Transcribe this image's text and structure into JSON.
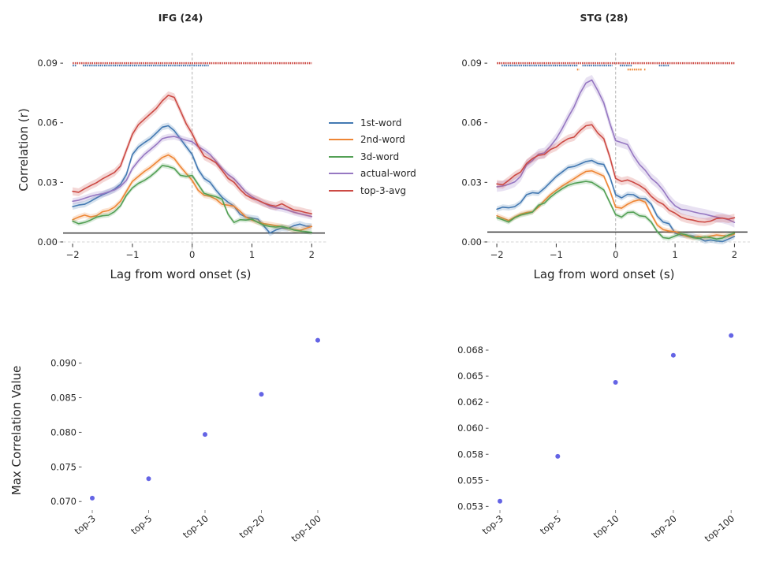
{
  "figure": {
    "legend": {
      "items": [
        {
          "label": "1st-word",
          "color": "#4379b2"
        },
        {
          "label": "2nd-word",
          "color": "#ee8635"
        },
        {
          "label": "3d-word",
          "color": "#53a055"
        },
        {
          "label": "actual-word",
          "color": "#9678c2"
        },
        {
          "label": "top-3-avg",
          "color": "#cc4a44"
        }
      ]
    },
    "accent_colors": {
      "scatter_point": "#4949e0",
      "zero_vline": "#b3b3b3",
      "zero_hline": "#d9d9d9",
      "noise_floor_line": "#3a3a3a",
      "tick": "#333333"
    }
  },
  "chart_data": [
    {
      "id": "ifg_lag",
      "type": "line",
      "title": "IFG (24)",
      "xlabel": "Lag from word onset (s)",
      "ylabel": "Correlation (r)",
      "xlim": [
        -2.16,
        2.22
      ],
      "ylim": [
        -0.0032,
        0.096
      ],
      "xticks": [
        -2,
        -1,
        0,
        1,
        2
      ],
      "xtick_labels": [
        "−2",
        "−1",
        "0",
        "1",
        "2"
      ],
      "yticks": [
        0.0,
        0.03,
        0.06,
        0.09
      ],
      "ytick_labels": [
        "0.00",
        "0.03",
        "0.06",
        "0.09"
      ],
      "vline_x": 0,
      "zero_hline_y": 0,
      "noise_floor_y": 0.0045,
      "x_start": -2.0,
      "x_step": 0.1,
      "series": [
        {
          "name": "1st-word",
          "color": "#4379b2",
          "band": 0.0016,
          "values": [
            0.0178,
            0.0186,
            0.019,
            0.0205,
            0.0222,
            0.0238,
            0.025,
            0.0266,
            0.029,
            0.034,
            0.044,
            0.0478,
            0.05,
            0.052,
            0.0548,
            0.0578,
            0.0585,
            0.056,
            0.052,
            0.048,
            0.044,
            0.0365,
            0.032,
            0.03,
            0.026,
            0.0225,
            0.02,
            0.018,
            0.014,
            0.0125,
            0.012,
            0.0115,
            0.008,
            0.0045,
            0.006,
            0.007,
            0.0068,
            0.0082,
            0.009,
            0.008,
            0.0078
          ]
        },
        {
          "name": "2nd-word",
          "color": "#ee8635",
          "band": 0.0014,
          "values": [
            0.0112,
            0.0125,
            0.0135,
            0.0126,
            0.0132,
            0.0152,
            0.0158,
            0.0175,
            0.0205,
            0.0255,
            0.0305,
            0.033,
            0.0355,
            0.0375,
            0.04,
            0.0425,
            0.0438,
            0.042,
            0.038,
            0.0345,
            0.031,
            0.026,
            0.0235,
            0.023,
            0.0215,
            0.019,
            0.0185,
            0.018,
            0.0155,
            0.0125,
            0.011,
            0.01,
            0.0092,
            0.0088,
            0.0082,
            0.0078,
            0.007,
            0.0062,
            0.0058,
            0.0068,
            0.0078
          ]
        },
        {
          "name": "3d-word",
          "color": "#53a055",
          "band": 0.0012,
          "values": [
            0.0105,
            0.0092,
            0.0098,
            0.011,
            0.0125,
            0.0132,
            0.0135,
            0.0152,
            0.0182,
            0.0235,
            0.0272,
            0.0295,
            0.031,
            0.033,
            0.0355,
            0.0385,
            0.038,
            0.037,
            0.0336,
            0.033,
            0.0335,
            0.029,
            0.0245,
            0.0235,
            0.0228,
            0.0215,
            0.014,
            0.0098,
            0.0112,
            0.011,
            0.0115,
            0.0098,
            0.0085,
            0.0078,
            0.0075,
            0.0078,
            0.007,
            0.006,
            0.0055,
            0.0052,
            0.0048
          ]
        },
        {
          "name": "actual-word",
          "color": "#9678c2",
          "band": 0.0016,
          "values": [
            0.0205,
            0.021,
            0.022,
            0.023,
            0.0238,
            0.0242,
            0.0252,
            0.0262,
            0.028,
            0.031,
            0.037,
            0.0408,
            0.044,
            0.0465,
            0.049,
            0.052,
            0.0528,
            0.0531,
            0.0522,
            0.0512,
            0.0505,
            0.048,
            0.0462,
            0.044,
            0.0405,
            0.037,
            0.034,
            0.0318,
            0.0285,
            0.025,
            0.0228,
            0.021,
            0.0195,
            0.018,
            0.0172,
            0.0168,
            0.016,
            0.015,
            0.0142,
            0.0135,
            0.0128
          ]
        },
        {
          "name": "top-3-avg",
          "color": "#cc4a44",
          "band": 0.002,
          "values": [
            0.0255,
            0.025,
            0.0268,
            0.0284,
            0.0298,
            0.0318,
            0.0334,
            0.035,
            0.0382,
            0.0462,
            0.0542,
            0.059,
            0.0618,
            0.0645,
            0.0672,
            0.071,
            0.0738,
            0.0728,
            0.0662,
            0.0595,
            0.0545,
            0.0482,
            0.0432,
            0.0416,
            0.0398,
            0.036,
            0.032,
            0.03,
            0.0264,
            0.0236,
            0.022,
            0.021,
            0.0196,
            0.0186,
            0.018,
            0.0192,
            0.0176,
            0.0161,
            0.0156,
            0.0148,
            0.0142
          ]
        }
      ],
      "significance_markers": [
        {
          "name": "top-3-avg",
          "color": "#cc4a44",
          "y": 0.09,
          "width": 2.6,
          "segments": [
            [
              -2.0,
              2.0
            ]
          ]
        },
        {
          "name": "1st-word",
          "color": "#4379b2",
          "y": 0.0888,
          "width": 2.3,
          "segments": [
            [
              -2.0,
              -1.94
            ],
            [
              -1.83,
              0.28
            ]
          ]
        }
      ]
    },
    {
      "id": "stg_lag",
      "type": "line",
      "title": "STG (28)",
      "xlabel": "Lag from word onset (s)",
      "ylabel": "",
      "xlim": [
        -2.16,
        2.22
      ],
      "ylim": [
        -0.0032,
        0.096
      ],
      "xticks": [
        -2,
        -1,
        0,
        1,
        2
      ],
      "xtick_labels": [
        "−2",
        "−1",
        "0",
        "1",
        "2"
      ],
      "yticks": [
        0.0,
        0.03,
        0.06,
        0.09
      ],
      "ytick_labels": [
        "0.00",
        "0.03",
        "0.06",
        "0.09"
      ],
      "vline_x": 0,
      "zero_hline_y": 0,
      "noise_floor_y": 0.005,
      "x_start": -2.0,
      "x_step": 0.1,
      "series": [
        {
          "name": "1st-word",
          "color": "#4379b2",
          "band": 0.0014,
          "values": [
            0.0165,
            0.0175,
            0.0172,
            0.0178,
            0.0198,
            0.0238,
            0.0248,
            0.0245,
            0.027,
            0.03,
            0.033,
            0.0352,
            0.0375,
            0.038,
            0.0392,
            0.0405,
            0.041,
            0.0395,
            0.039,
            0.033,
            0.0238,
            0.0222,
            0.024,
            0.0238,
            0.022,
            0.0218,
            0.019,
            0.013,
            0.01,
            0.0092,
            0.0045,
            0.0035,
            0.0032,
            0.003,
            0.002,
            0.0005,
            0.001,
            0.0005,
            0.0002,
            0.0015,
            0.0028
          ]
        },
        {
          "name": "2nd-word",
          "color": "#ee8635",
          "band": 0.0013,
          "values": [
            0.0132,
            0.012,
            0.0108,
            0.0125,
            0.014,
            0.0148,
            0.0152,
            0.0175,
            0.0208,
            0.0238,
            0.026,
            0.0282,
            0.03,
            0.0318,
            0.0338,
            0.0355,
            0.0358,
            0.0345,
            0.0332,
            0.0262,
            0.0175,
            0.017,
            0.019,
            0.0205,
            0.0212,
            0.02,
            0.014,
            0.0085,
            0.0062,
            0.0055,
            0.0052,
            0.004,
            0.0028,
            0.0022,
            0.0028,
            0.0022,
            0.003,
            0.0035,
            0.0032,
            0.003,
            0.004
          ]
        },
        {
          "name": "3d-word",
          "color": "#53a055",
          "band": 0.0012,
          "values": [
            0.0122,
            0.0112,
            0.01,
            0.0122,
            0.0135,
            0.0142,
            0.015,
            0.0185,
            0.0195,
            0.0225,
            0.0248,
            0.0268,
            0.0285,
            0.0295,
            0.03,
            0.0305,
            0.03,
            0.0282,
            0.0262,
            0.02,
            0.0138,
            0.0125,
            0.0148,
            0.015,
            0.0132,
            0.0128,
            0.01,
            0.0052,
            0.0022,
            0.0018,
            0.003,
            0.0042,
            0.0035,
            0.0022,
            0.0018,
            0.0025,
            0.0022,
            0.0015,
            0.002,
            0.0035,
            0.0045
          ]
        },
        {
          "name": "actual-word",
          "color": "#9678c2",
          "band": 0.0026,
          "values": [
            0.0278,
            0.0282,
            0.029,
            0.0302,
            0.033,
            0.0388,
            0.041,
            0.0442,
            0.0448,
            0.0482,
            0.052,
            0.057,
            0.0628,
            0.068,
            0.0748,
            0.08,
            0.0815,
            0.0762,
            0.07,
            0.06,
            0.051,
            0.05,
            0.049,
            0.0435,
            0.039,
            0.036,
            0.032,
            0.0295,
            0.026,
            0.0215,
            0.0182,
            0.0165,
            0.016,
            0.0152,
            0.0145,
            0.014,
            0.0132,
            0.0125,
            0.012,
            0.0112,
            0.0098
          ]
        },
        {
          "name": "top-3-avg",
          "color": "#cc4a44",
          "band": 0.002,
          "values": [
            0.0292,
            0.0288,
            0.031,
            0.0335,
            0.0352,
            0.0395,
            0.042,
            0.0436,
            0.044,
            0.0465,
            0.0478,
            0.0502,
            0.052,
            0.0528,
            0.056,
            0.0585,
            0.059,
            0.0548,
            0.052,
            0.043,
            0.032,
            0.0305,
            0.0312,
            0.03,
            0.0285,
            0.0265,
            0.023,
            0.0205,
            0.019,
            0.016,
            0.0145,
            0.0125,
            0.0115,
            0.011,
            0.0102,
            0.01,
            0.0105,
            0.0118,
            0.012,
            0.0115,
            0.0122
          ]
        }
      ],
      "significance_markers": [
        {
          "name": "top-3-avg",
          "color": "#cc4a44",
          "y": 0.09,
          "width": 2.6,
          "segments": [
            [
              -2.0,
              2.0
            ]
          ]
        },
        {
          "name": "1st-word",
          "color": "#4379b2",
          "y": 0.0888,
          "width": 2.3,
          "segments": [
            [
              -1.92,
              -0.63
            ],
            [
              -0.56,
              -0.05
            ],
            [
              0.07,
              0.27
            ],
            [
              0.73,
              0.91
            ]
          ]
        },
        {
          "name": "2nd-word",
          "color": "#ee8635",
          "y": 0.0868,
          "width": 2.3,
          "segments": [
            [
              -0.65,
              -0.61
            ],
            [
              0.2,
              0.44
            ],
            [
              0.48,
              0.5
            ]
          ]
        }
      ]
    },
    {
      "id": "ifg_max",
      "type": "scatter",
      "title": "",
      "ylabel": "Max Correlation Value",
      "categories": [
        "top-3",
        "top-5",
        "top-10",
        "top-20",
        "top-100"
      ],
      "values": [
        0.0705,
        0.0733,
        0.0797,
        0.0855,
        0.0933
      ],
      "yticks": [
        0.07,
        0.075,
        0.08,
        0.085,
        0.09
      ],
      "ytick_labels": [
        "0.070",
        "0.075",
        "0.080",
        "0.085",
        "0.090"
      ],
      "ylim": [
        0.069,
        0.0952
      ],
      "point_color": "#4949e0"
    },
    {
      "id": "stg_max",
      "type": "scatter",
      "title": "",
      "ylabel": "",
      "categories": [
        "top-3",
        "top-5",
        "top-10",
        "top-20",
        "top-100"
      ],
      "values": [
        0.053,
        0.0573,
        0.0644,
        0.067,
        0.0689
      ],
      "yticks": [
        0.0525,
        0.055,
        0.0575,
        0.06,
        0.0625,
        0.065,
        0.0675
      ],
      "ytick_labels": [
        "0.053",
        "0.055",
        "0.058",
        "0.060",
        "0.062",
        "0.065",
        "0.068"
      ],
      "ylim": [
        0.0523,
        0.0697
      ],
      "point_color": "#4949e0"
    }
  ]
}
